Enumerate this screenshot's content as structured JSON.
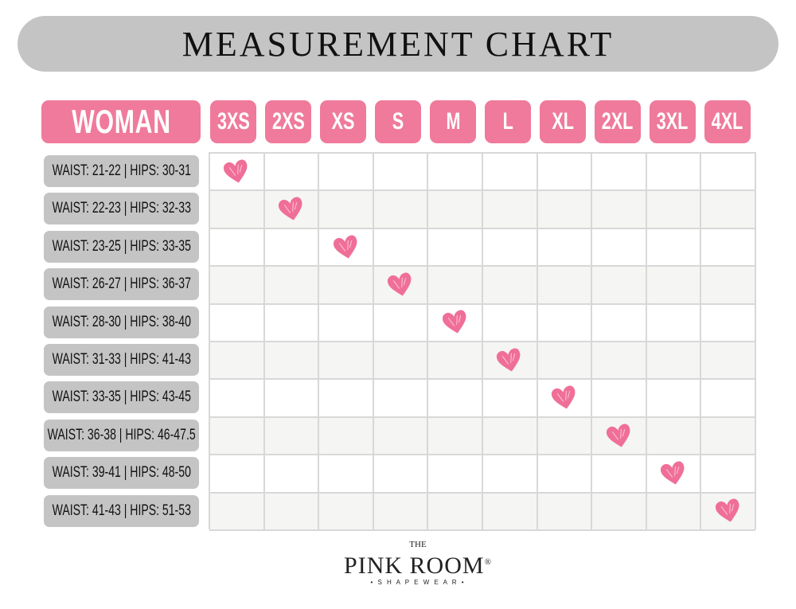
{
  "title": "MEASUREMENT CHART",
  "header_label": "WOMAN",
  "sizes": [
    "3XS",
    "2XS",
    "XS",
    "S",
    "M",
    "L",
    "XL",
    "2XL",
    "3XL",
    "4XL"
  ],
  "rows": [
    {
      "label": "WAIST: 21-22 | HIPS: 30-31",
      "size": "3XS"
    },
    {
      "label": "WAIST: 22-23 | HIPS: 32-33",
      "size": "2XS"
    },
    {
      "label": "WAIST: 23-25 | HIPS: 33-35",
      "size": "XS"
    },
    {
      "label": "WAIST: 26-27 | HIPS: 36-37",
      "size": "S"
    },
    {
      "label": "WAIST: 28-30 | HIPS: 38-40",
      "size": "M"
    },
    {
      "label": "WAIST: 31-33 | HIPS: 41-43",
      "size": "L"
    },
    {
      "label": "WAIST: 33-35 | HIPS: 43-45",
      "size": "XL"
    },
    {
      "label": "WAIST: 36-38 | HIPS: 46-47.5",
      "size": "2XL"
    },
    {
      "label": "WAIST: 39-41 | HIPS: 48-50",
      "size": "3XL"
    },
    {
      "label": "WAIST: 41-43 | HIPS: 51-53",
      "size": "4XL"
    }
  ],
  "marker_icon": "heart-icon",
  "colors": {
    "accent": "#f07a9b",
    "label_bg": "#c4c4c4",
    "heart": "#ef6f98"
  },
  "logo": {
    "the": "THE",
    "name": "PINK ROOM",
    "registered": "®",
    "tagline": "• S H A P E W E A R •"
  }
}
